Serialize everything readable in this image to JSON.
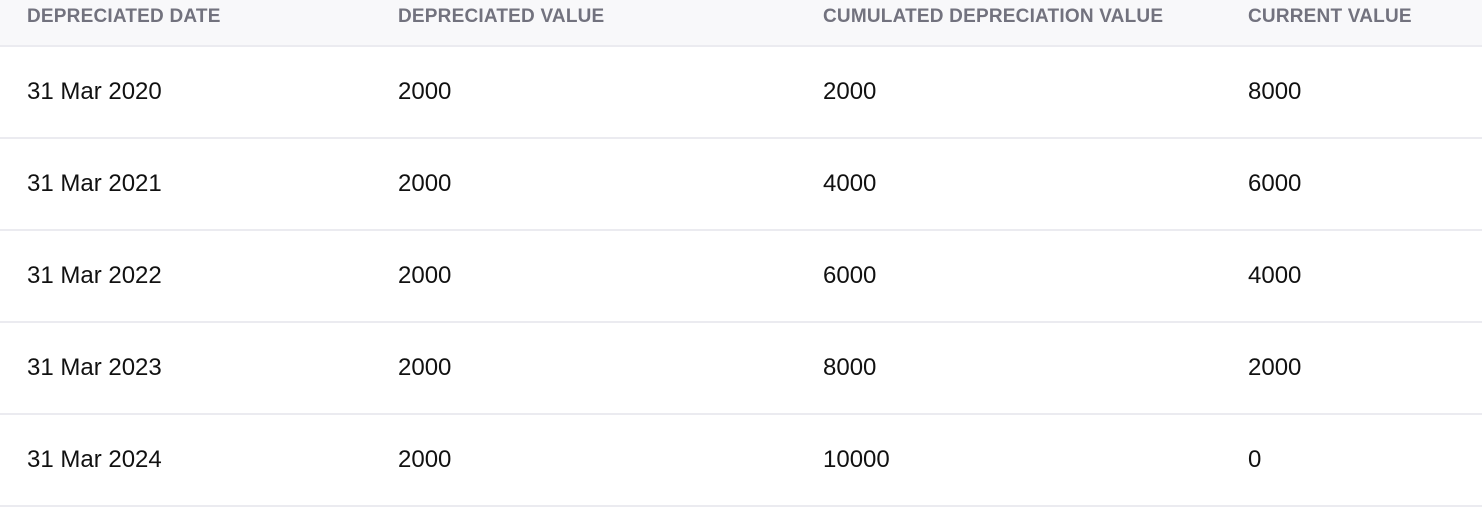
{
  "table": {
    "headers": [
      "DEPRECIATED DATE",
      "DEPRECIATED VALUE",
      "CUMULATED DEPRECIATION VALUE",
      "CURRENT VALUE"
    ],
    "rows": [
      [
        "31 Mar 2020",
        "2000",
        "2000",
        "8000"
      ],
      [
        "31 Mar 2021",
        "2000",
        "4000",
        "6000"
      ],
      [
        "31 Mar 2022",
        "2000",
        "6000",
        "4000"
      ],
      [
        "31 Mar 2023",
        "2000",
        "8000",
        "2000"
      ],
      [
        "31 Mar 2024",
        "2000",
        "10000",
        "0"
      ]
    ]
  }
}
